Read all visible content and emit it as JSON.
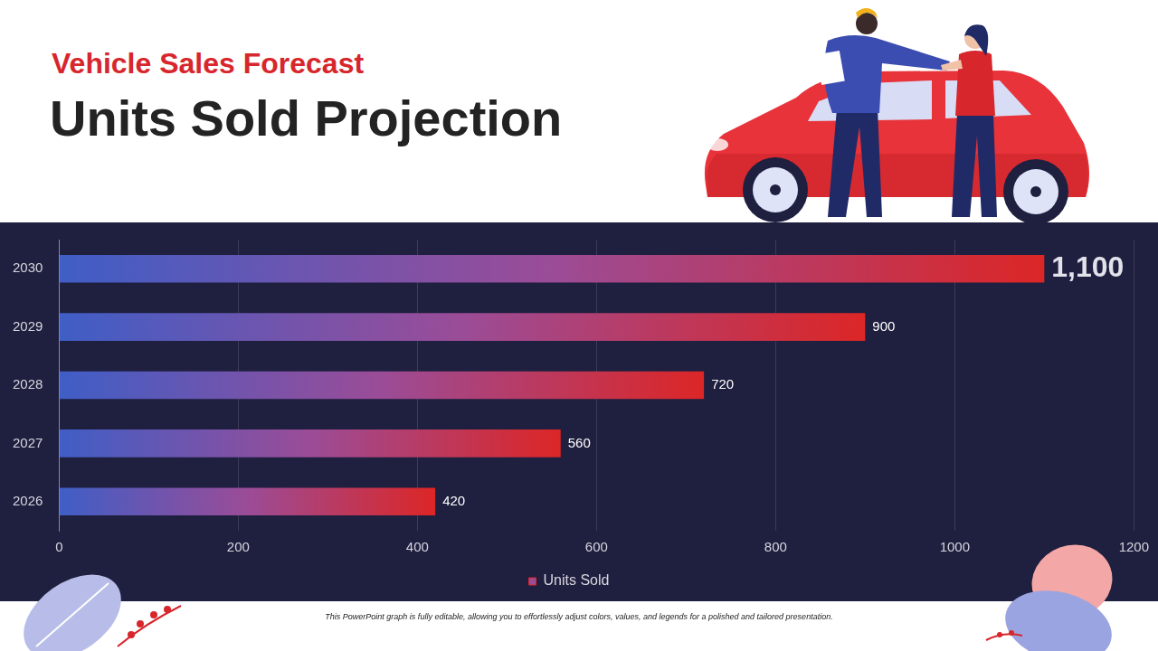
{
  "chart_data": {
    "type": "bar",
    "orientation": "horizontal",
    "subtitle": "Vehicle Sales Forecast",
    "title": "Units Sold Projection",
    "footnote": "This PowerPoint graph is fully editable, allowing you to effortlessly adjust colors, values, and legends for a polished and tailored presentation.",
    "categories": [
      "2026",
      "2027",
      "2028",
      "2029",
      "2030"
    ],
    "series": [
      {
        "name": "Units Sold",
        "color": "#dc2626",
        "values": [
          420,
          560,
          720,
          900,
          1100
        ],
        "value_labels": [
          "420",
          "560",
          "720",
          "900",
          "1,100"
        ]
      }
    ],
    "xlim": [
      0,
      1200
    ],
    "xticks": [
      0,
      200,
      400,
      600,
      800,
      1000,
      1200
    ],
    "grid": true,
    "legend": "bottom",
    "data_labels": true
  }
}
